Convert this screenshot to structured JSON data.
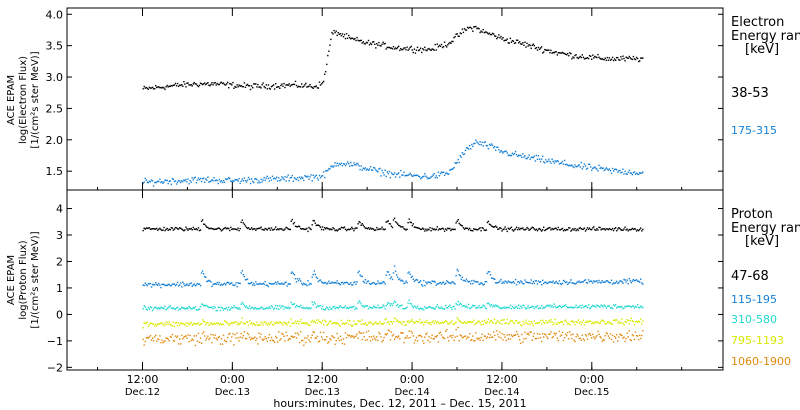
{
  "chart_data": [
    {
      "type": "scatter",
      "panel": "electron",
      "ylabel_lines": [
        "ACE EPAM",
        "log(Electron Flux)",
        "[1/(cm²s ster MeV)]"
      ],
      "ylim": [
        1.2,
        4.1
      ],
      "yticks": [
        1.5,
        2.0,
        2.5,
        3.0,
        3.5,
        4.0
      ],
      "ytick_labels": [
        "1.5",
        "2.0",
        "2.5",
        "3.0",
        "3.5",
        "4.0"
      ],
      "legend_title_lines": [
        "Electron",
        "Energy range",
        "[keV]"
      ],
      "series": [
        {
          "name": "38-53",
          "color": "#000000",
          "x": [
            0.0,
            0.1,
            0.2,
            0.3,
            0.4,
            0.5,
            0.6,
            0.7,
            0.8,
            0.85,
            0.9,
            0.95,
            1.0,
            1.02,
            1.05,
            1.08,
            1.15,
            1.25,
            1.32,
            1.4,
            1.5,
            1.6,
            1.7,
            1.8,
            1.85,
            1.9,
            1.95,
            2.0,
            2.1,
            2.2,
            2.3,
            2.4,
            2.5,
            2.6,
            2.7,
            2.78
          ],
          "values": [
            2.82,
            2.85,
            2.88,
            2.9,
            2.9,
            2.88,
            2.86,
            2.87,
            2.88,
            2.88,
            2.87,
            2.86,
            2.9,
            3.2,
            3.7,
            3.72,
            3.62,
            3.55,
            3.52,
            3.48,
            3.46,
            3.45,
            3.55,
            3.78,
            3.8,
            3.72,
            3.68,
            3.62,
            3.55,
            3.47,
            3.4,
            3.35,
            3.32,
            3.3,
            3.3,
            3.3
          ]
        },
        {
          "name": "175-315",
          "color": "#1580d6",
          "x": [
            0.0,
            0.1,
            0.2,
            0.3,
            0.4,
            0.5,
            0.6,
            0.7,
            0.8,
            0.85,
            0.9,
            0.95,
            1.0,
            1.05,
            1.08,
            1.15,
            1.25,
            1.32,
            1.4,
            1.5,
            1.6,
            1.7,
            1.8,
            1.85,
            1.9,
            1.95,
            2.0,
            2.1,
            2.2,
            2.3,
            2.4,
            2.5,
            2.6,
            2.7,
            2.78
          ],
          "values": [
            1.33,
            1.35,
            1.36,
            1.37,
            1.37,
            1.36,
            1.37,
            1.38,
            1.39,
            1.4,
            1.41,
            1.42,
            1.43,
            1.58,
            1.65,
            1.62,
            1.55,
            1.5,
            1.46,
            1.44,
            1.42,
            1.48,
            1.85,
            1.97,
            1.93,
            1.88,
            1.82,
            1.75,
            1.7,
            1.65,
            1.6,
            1.56,
            1.52,
            1.5,
            1.48
          ]
        }
      ]
    },
    {
      "type": "scatter",
      "panel": "proton",
      "ylabel_lines": [
        "ACE EPAM",
        "log(Proton Flux)",
        "[1/(cm²s ster MeV)]"
      ],
      "ylim": [
        -2.1,
        4.7
      ],
      "yticks": [
        -2,
        -1,
        0,
        1,
        2,
        3,
        4
      ],
      "ytick_labels": [
        "−2",
        "−1",
        "0",
        "1",
        "2",
        "3",
        "4"
      ],
      "legend_title_lines": [
        "Proton",
        "Energy range",
        "[keV]"
      ],
      "spikes": [
        0.33,
        0.55,
        0.83,
        0.95,
        1.2,
        1.36,
        1.4,
        1.48,
        1.75,
        1.92
      ],
      "series": [
        {
          "name": "47-68",
          "color": "#000000",
          "base": 3.25,
          "drift": 0.0,
          "spike_amp": 0.35,
          "noise": 0.06
        },
        {
          "name": "115-195",
          "color": "#1580d6",
          "base": 1.15,
          "drift": 0.12,
          "spike_amp": 0.5,
          "noise": 0.08
        },
        {
          "name": "310-580",
          "color": "#20d8cf",
          "base": 0.25,
          "drift": 0.08,
          "spike_amp": 0.2,
          "noise": 0.07
        },
        {
          "name": "795-1193",
          "color": "#d8e800",
          "base": -0.35,
          "drift": 0.1,
          "spike_amp": 0.1,
          "noise": 0.09
        },
        {
          "name": "1060-1900",
          "color": "#e08a10",
          "base": -0.9,
          "drift": 0.12,
          "spike_amp": 0.1,
          "noise": 0.2
        }
      ]
    }
  ],
  "x_axis": {
    "domain_days": [
      -0.42,
      3.23
    ],
    "ticks": [
      {
        "day": 0.0,
        "line1": "12:00",
        "line2": "Dec.12"
      },
      {
        "day": 0.5,
        "line1": "0:00",
        "line2": "Dec.13"
      },
      {
        "day": 1.0,
        "line1": "12:00",
        "line2": "Dec.13"
      },
      {
        "day": 1.5,
        "line1": "0:00",
        "line2": "Dec.14"
      },
      {
        "day": 2.0,
        "line1": "12:00",
        "line2": "Dec.14"
      },
      {
        "day": 2.5,
        "line1": "0:00",
        "line2": "Dec.15"
      }
    ],
    "title": "hours:minutes, Dec. 12, 2011 – Dec. 15, 2011",
    "data_end_day": 2.78
  }
}
